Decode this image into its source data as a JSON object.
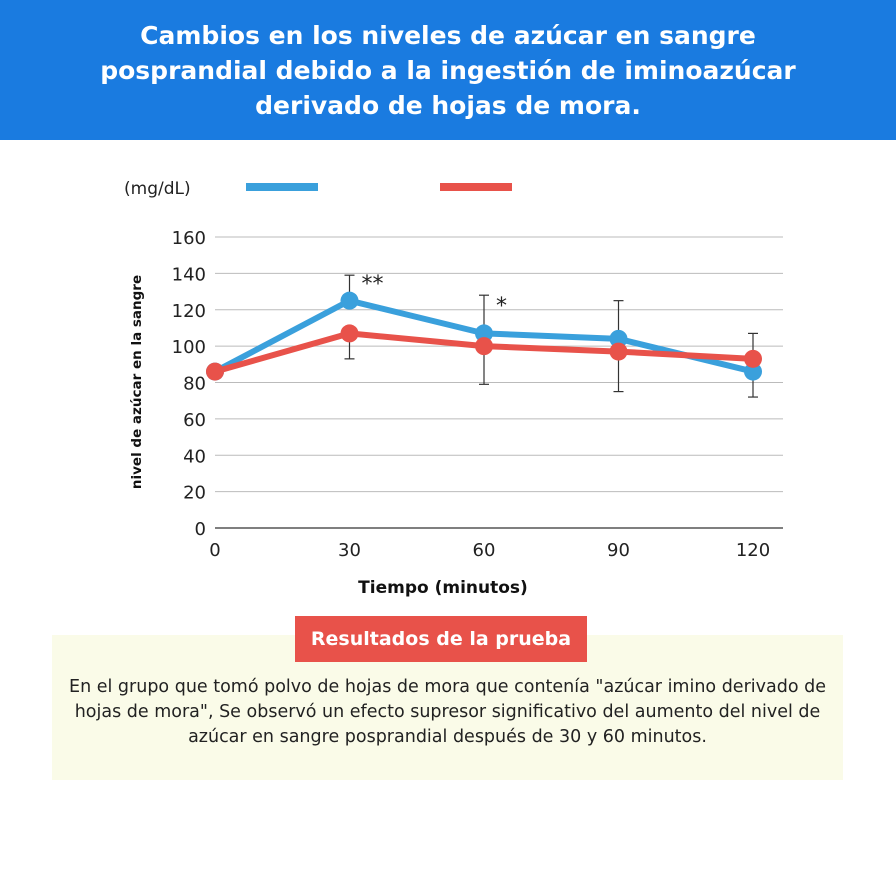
{
  "header": {
    "title": "Cambios en los niveles de azúcar en sangre\nposprandial debido a la ingestión de iminoazúcar\nderivado de hojas de mora."
  },
  "chart_data": {
    "type": "line",
    "unit_label": "(mg/dL)",
    "xlabel": "Tiempo (minutos)",
    "ylabel": "nivel de azúcar en la sangre",
    "x": [
      0,
      30,
      60,
      90,
      120
    ],
    "xlim": [
      0,
      120
    ],
    "ylim": [
      0,
      160
    ],
    "xticks": [
      "0",
      "30",
      "60",
      "90",
      "120"
    ],
    "yticks": [
      "0",
      "20",
      "40",
      "60",
      "80",
      "100",
      "120",
      "140",
      "160"
    ],
    "grid": true,
    "legend": "top",
    "series": [
      {
        "color": "#3aa0dc",
        "values": [
          86,
          125,
          107,
          104,
          86
        ],
        "err_low": [
          null,
          null,
          79,
          75,
          72
        ],
        "err_high": [
          null,
          139,
          128,
          125,
          null
        ]
      },
      {
        "color": "#e8524a",
        "values": [
          86,
          107,
          100,
          97,
          93
        ],
        "err_low": [
          null,
          93,
          null,
          null,
          null
        ],
        "err_high": [
          null,
          null,
          null,
          null,
          107
        ]
      }
    ],
    "annotations": [
      {
        "x": 30,
        "text": "**"
      },
      {
        "x": 60,
        "text": "*"
      }
    ]
  },
  "results": {
    "badge": "Resultados de la prueba",
    "text": "En el grupo que tomó polvo de hojas de mora que contenía \"azúcar imino derivado de hojas de mora\", Se observó un efecto supresor significativo del aumento del nivel de azúcar en sangre posprandial después de 30 y 60 minutos."
  }
}
